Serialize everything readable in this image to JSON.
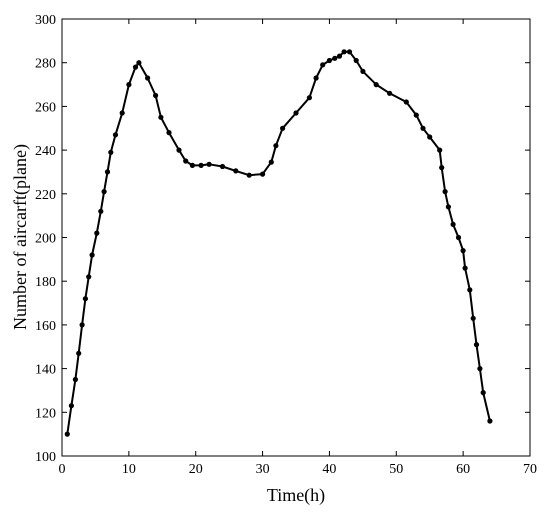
{
  "chart_data": {
    "type": "line",
    "xlabel": "Time(h)",
    "ylabel": "Number of aircarft(plane)",
    "xlim": [
      0,
      70
    ],
    "ylim": [
      100,
      300
    ],
    "xticks": [
      0,
      10,
      20,
      30,
      40,
      50,
      60,
      70
    ],
    "yticks": [
      100,
      120,
      140,
      160,
      180,
      200,
      220,
      240,
      260,
      280,
      300
    ],
    "grid": false,
    "series": [
      {
        "x": [
          0.8,
          1.4,
          2.0,
          2.5,
          3.0,
          3.5,
          4.0,
          4.5,
          5.2,
          5.8,
          6.3,
          6.8,
          7.3,
          8.0,
          9.0,
          10.0,
          11.0,
          11.5,
          12.8,
          14.0,
          14.8,
          16.0,
          17.5,
          18.5,
          19.5,
          20.8,
          22.0,
          24.0,
          26.0,
          28.0,
          30.0,
          31.3,
          32.0,
          33.0,
          35.0,
          37.0,
          38.0,
          39.0,
          40.0,
          40.8,
          41.5,
          42.2,
          43.0,
          44.0,
          45.0,
          47.0,
          49.0,
          51.5,
          53.0,
          54.0,
          55.0,
          56.5,
          56.8,
          57.3,
          57.8,
          58.5,
          59.3,
          60.0,
          60.3,
          61.0,
          61.5,
          62.0,
          62.5,
          63.0,
          64.0
        ],
        "y": [
          110,
          123,
          135,
          147,
          160,
          172,
          182,
          192,
          202,
          212,
          221,
          230,
          239,
          247,
          257,
          270,
          278,
          280,
          273,
          265,
          255,
          248,
          240,
          235,
          233,
          233,
          233.5,
          232.5,
          230.5,
          228.5,
          229,
          234.5,
          242,
          250,
          257,
          264,
          273,
          279,
          281,
          282,
          283,
          285,
          285,
          281,
          276,
          270,
          266,
          262,
          256,
          250,
          246,
          240,
          232,
          221,
          214,
          206,
          200,
          194,
          186,
          176,
          163,
          151,
          140,
          129,
          116
        ]
      }
    ]
  }
}
